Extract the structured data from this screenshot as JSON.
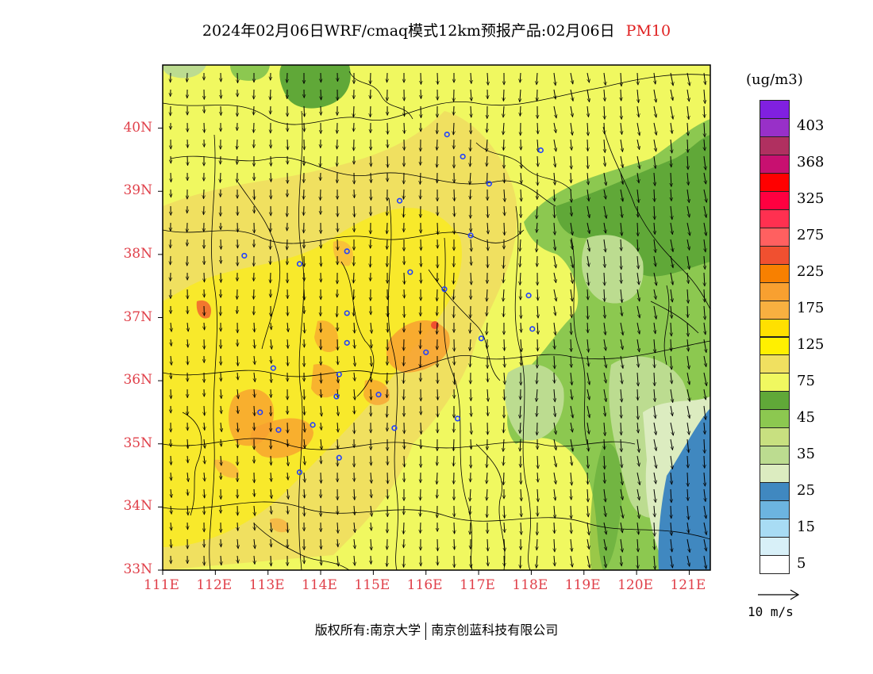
{
  "title": {
    "main": "2024年02月06日WRF/cmaq模式12km预报产品:02月06日",
    "pollutant": "PM10"
  },
  "axes": {
    "lon_labels": [
      "111E",
      "112E",
      "113E",
      "114E",
      "115E",
      "116E",
      "117E",
      "118E",
      "119E",
      "120E",
      "121E"
    ],
    "lat_labels": [
      "33N",
      "34N",
      "35N",
      "36N",
      "37N",
      "38N",
      "39N",
      "40N"
    ],
    "lon_range": [
      111,
      121.4
    ],
    "lat_range": [
      33,
      41
    ]
  },
  "legend": {
    "unit": "(ug/m3)",
    "colors": [
      "#ffffff",
      "#d8f0f8",
      "#a8dcf4",
      "#6cb4e0",
      "#4088c0",
      "#dcecc0",
      "#bcdc90",
      "#c8e080",
      "#8cc850",
      "#60a838",
      "#f0f860",
      "#f0e060",
      "#fff000",
      "#ffe000",
      "#f8b040",
      "#f8a030",
      "#f88000",
      "#f05030",
      "#ff6060",
      "#ff3050",
      "#ff0040",
      "#ff0000",
      "#c81070",
      "#b03060",
      "#9830c8",
      "#8020e0"
    ],
    "ticks": [
      "5",
      "15",
      "25",
      "35",
      "45",
      "75",
      "125",
      "175",
      "225",
      "275",
      "325",
      "368",
      "403"
    ]
  },
  "wind_reference": {
    "label": "10 m/s"
  },
  "footer": {
    "left": "版权所有:南京大学",
    "right": "南京创蓝科技有限公司"
  },
  "stations": [
    {
      "lon": 116.4,
      "lat": 39.9
    },
    {
      "lon": 116.7,
      "lat": 39.55
    },
    {
      "lon": 117.2,
      "lat": 39.12
    },
    {
      "lon": 118.18,
      "lat": 39.65
    },
    {
      "lon": 115.5,
      "lat": 38.85
    },
    {
      "lon": 116.85,
      "lat": 38.3
    },
    {
      "lon": 114.5,
      "lat": 38.05
    },
    {
      "lon": 113.6,
      "lat": 37.85
    },
    {
      "lon": 112.55,
      "lat": 37.98
    },
    {
      "lon": 115.7,
      "lat": 37.72
    },
    {
      "lon": 116.35,
      "lat": 37.45
    },
    {
      "lon": 117.95,
      "lat": 37.35
    },
    {
      "lon": 114.5,
      "lat": 37.07
    },
    {
      "lon": 114.5,
      "lat": 36.6
    },
    {
      "lon": 116.0,
      "lat": 36.45
    },
    {
      "lon": 117.05,
      "lat": 36.67
    },
    {
      "lon": 118.02,
      "lat": 36.82
    },
    {
      "lon": 113.1,
      "lat": 36.2
    },
    {
      "lon": 114.35,
      "lat": 36.1
    },
    {
      "lon": 114.3,
      "lat": 35.75
    },
    {
      "lon": 115.1,
      "lat": 35.78
    },
    {
      "lon": 112.85,
      "lat": 35.5
    },
    {
      "lon": 113.2,
      "lat": 35.22
    },
    {
      "lon": 113.85,
      "lat": 35.3
    },
    {
      "lon": 115.4,
      "lat": 35.25
    },
    {
      "lon": 116.6,
      "lat": 35.4
    },
    {
      "lon": 114.35,
      "lat": 34.78
    },
    {
      "lon": 113.6,
      "lat": 34.55
    }
  ]
}
